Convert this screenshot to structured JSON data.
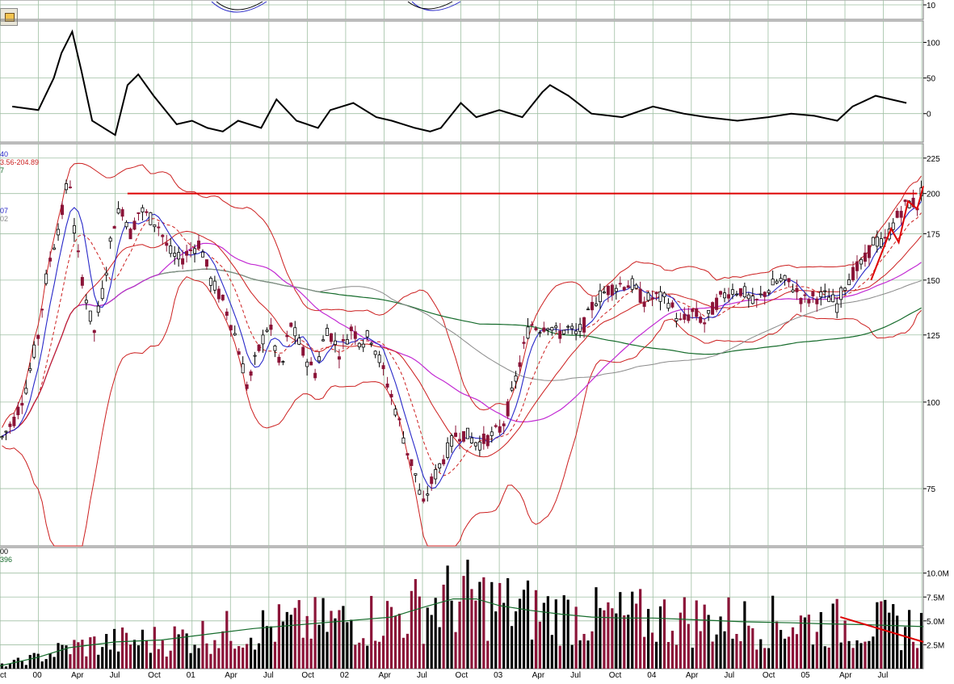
{
  "colors": {
    "background": "#ffffff",
    "grid": "#9fbfa3",
    "up_candle": "#000000",
    "down_candle": "#8b1438",
    "indicator": "#000000",
    "ma_blue": "#2727c8",
    "ma_red": "#cc1f1f",
    "ma_magenta": "#c22ad3",
    "ma_green": "#156b2b",
    "ma_gray": "#8a8a8a",
    "bands": "#cc1f1f",
    "annotation": "#dd0000"
  },
  "toolbar": {
    "icon": "folder-icon"
  },
  "price_legend": [
    "40",
    "3.56-204.89",
    "7",
    "07",
    "02"
  ],
  "volume_legend": [
    "00",
    "396"
  ],
  "chart_data": [
    {
      "panel": "top-strip",
      "type": "line",
      "y_ticks": [
        "10"
      ]
    },
    {
      "panel": "indicator",
      "type": "line",
      "y_ticks": [
        "100",
        "50",
        "0"
      ],
      "ylim": [
        -40,
        130
      ],
      "grid": true,
      "x": [
        1999.83,
        2000.0,
        2000.1,
        2000.15,
        2000.22,
        2000.28,
        2000.35,
        2000.5,
        2000.58,
        2000.65,
        2000.75,
        2000.9,
        2001.0,
        2001.1,
        2001.2,
        2001.3,
        2001.45,
        2001.55,
        2001.68,
        2001.82,
        2001.9,
        2002.05,
        2002.2,
        2002.3,
        2002.45,
        2002.55,
        2002.62,
        2002.75,
        2002.85,
        2003.0,
        2003.15,
        2003.28,
        2003.33,
        2003.45,
        2003.6,
        2003.8,
        2004.0,
        2004.2,
        2004.35,
        2004.55,
        2004.75,
        2004.9,
        2005.05,
        2005.2,
        2005.3,
        2005.45,
        2005.55,
        2005.65
      ],
      "values": [
        10,
        5,
        50,
        85,
        115,
        60,
        -10,
        -30,
        40,
        55,
        25,
        -15,
        -10,
        -20,
        -25,
        -10,
        -20,
        20,
        -10,
        -20,
        5,
        15,
        -5,
        -10,
        -20,
        -25,
        -20,
        15,
        -5,
        5,
        -5,
        30,
        40,
        25,
        0,
        -5,
        10,
        0,
        -5,
        -10,
        -5,
        0,
        -3,
        -10,
        10,
        25,
        20,
        15
      ]
    },
    {
      "panel": "price",
      "type": "candlestick",
      "y_ticks": [
        "225",
        "200",
        "175",
        "150",
        "125",
        "100",
        "75"
      ],
      "yscale": "log",
      "ylim": [
        62,
        236
      ],
      "grid": true,
      "x_ticks": [
        "ct",
        "00",
        "Apr",
        "Jul",
        "Oct",
        "01",
        "Apr",
        "Jul",
        "Oct",
        "02",
        "Apr",
        "Jul",
        "Oct",
        "03",
        "Apr",
        "Jul",
        "Oct",
        "04",
        "Apr",
        "Jul",
        "Oct",
        "05",
        "Apr",
        "Jul"
      ],
      "x_range": [
        1999.75,
        2005.76
      ],
      "close_path": {
        "x": [
          1999.75,
          1999.85,
          1999.92,
          2000.0,
          2000.06,
          2000.12,
          2000.16,
          2000.2,
          2000.24,
          2000.3,
          2000.36,
          2000.42,
          2000.5,
          2000.55,
          2000.6,
          2000.66,
          2000.72,
          2000.78,
          2000.85,
          2000.92,
          2000.98,
          2001.05,
          2001.12,
          2001.2,
          2001.28,
          2001.36,
          2001.44,
          2001.5,
          2001.58,
          2001.64,
          2001.72,
          2001.8,
          2001.88,
          2001.96,
          2002.04,
          2002.1,
          2002.16,
          2002.22,
          2002.28,
          2002.34,
          2002.4,
          2002.46,
          2002.5,
          2002.54,
          2002.6,
          2002.66,
          2002.72,
          2002.78,
          2002.86,
          2002.94,
          2003.02,
          2003.08,
          2003.14,
          2003.2,
          2003.26,
          2003.32,
          2003.38,
          2003.44,
          2003.5,
          2003.56,
          2003.62,
          2003.7,
          2003.78,
          2003.86,
          2003.94,
          2004.02,
          2004.1,
          2004.18,
          2004.26,
          2004.34,
          2004.42,
          2004.5,
          2004.58,
          2004.66,
          2004.74,
          2004.82,
          2004.9,
          2004.98,
          2005.06,
          2005.14,
          2005.2,
          2005.26,
          2005.32,
          2005.38,
          2005.44,
          2005.5,
          2005.56,
          2005.62,
          2005.68,
          2005.72,
          2005.76
        ],
        "y": [
          88,
          95,
          105,
          125,
          155,
          175,
          190,
          215,
          170,
          145,
          125,
          145,
          185,
          190,
          175,
          190,
          185,
          180,
          165,
          160,
          165,
          170,
          150,
          140,
          125,
          105,
          120,
          130,
          110,
          130,
          118,
          110,
          128,
          118,
          128,
          122,
          125,
          115,
          105,
          95,
          85,
          78,
          70,
          75,
          80,
          85,
          90,
          90,
          87,
          89,
          92,
          102,
          115,
          130,
          128,
          130,
          125,
          128,
          125,
          130,
          140,
          145,
          148,
          148,
          140,
          142,
          140,
          130,
          135,
          130,
          140,
          145,
          145,
          138,
          145,
          150,
          148,
          140,
          142,
          142,
          138,
          150,
          155,
          160,
          172,
          168,
          180,
          190,
          195,
          192,
          205
        ]
      }
    },
    {
      "panel": "volume",
      "type": "bar",
      "y_ticks": [
        "10.0M",
        "7.5M",
        "5.0M",
        "2.5M"
      ],
      "ylim": [
        0,
        12000000
      ],
      "grid": true,
      "x_range": [
        1999.75,
        2005.76
      ],
      "bar_count": 230,
      "volume_ma": {
        "x": [
          1999.75,
          2000.0,
          2000.2,
          2000.5,
          2000.8,
          2001.1,
          2001.4,
          2001.7,
          2002.0,
          2002.3,
          2002.5,
          2002.7,
          2002.85,
          2003.0,
          2003.2,
          2003.4,
          2003.6,
          2003.8,
          2004.0,
          2004.3,
          2004.6,
          2004.9,
          2005.1,
          2005.4,
          2005.76
        ],
        "values": [
          300000,
          1200000,
          2200000,
          2800000,
          3000000,
          3600000,
          4200000,
          4600000,
          5000000,
          5400000,
          6400000,
          7300000,
          7300000,
          6600000,
          6100000,
          5700000,
          5400000,
          5300000,
          5300000,
          5100000,
          4900000,
          4800000,
          4700000,
          4600000,
          4400000
        ]
      }
    }
  ],
  "annotations": {
    "resistance_price": 200,
    "resistance_from": 2000.58,
    "resistance_to": 2005.72,
    "volume_trend_start": [
      2005.22,
      5400000
    ],
    "volume_trend_end": [
      2005.76,
      2800000
    ]
  }
}
